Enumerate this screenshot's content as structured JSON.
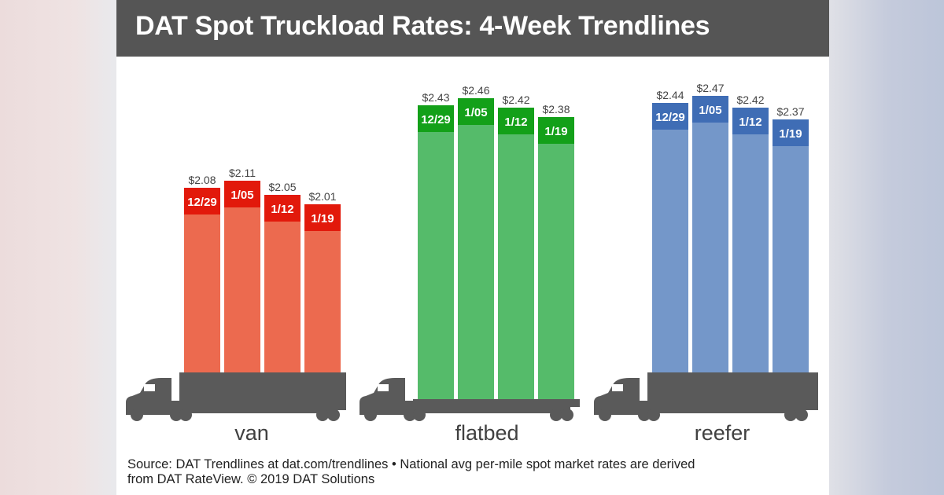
{
  "title": "DAT Spot Truckload Rates: 4-Week Trendlines",
  "source_line1": "Source: DAT Trendlines at dat.com/trendlines • National avg per-mile spot market rates are derived",
  "source_line2": "from DAT RateView. © 2019 DAT Solutions",
  "chart_data": [
    {
      "type": "bar",
      "category": "van",
      "truck": "dry-van-truck",
      "categories": [
        "12/29",
        "1/05",
        "1/12",
        "1/19"
      ],
      "values": [
        2.08,
        2.11,
        2.05,
        2.01
      ],
      "value_labels": [
        "$2.08",
        "$2.11",
        "$2.05",
        "$2.01"
      ],
      "bar_color": "#ec6a4f",
      "cap_color": "#e2190b"
    },
    {
      "type": "bar",
      "category": "flatbed",
      "truck": "flatbed-truck",
      "categories": [
        "12/29",
        "1/05",
        "1/12",
        "1/19"
      ],
      "values": [
        2.43,
        2.46,
        2.42,
        2.38
      ],
      "value_labels": [
        "$2.43",
        "$2.46",
        "$2.42",
        "$2.38"
      ],
      "bar_color": "#55bb6a",
      "cap_color": "#13a019"
    },
    {
      "type": "bar",
      "category": "reefer",
      "truck": "reefer-truck",
      "categories": [
        "12/29",
        "1/05",
        "1/12",
        "1/19"
      ],
      "values": [
        2.44,
        2.47,
        2.42,
        2.37
      ],
      "value_labels": [
        "$2.44",
        "$2.47",
        "$2.42",
        "$2.37"
      ],
      "bar_color": "#7497c9",
      "cap_color": "#3f6db5"
    }
  ],
  "truck_color": "#5a5a5a"
}
